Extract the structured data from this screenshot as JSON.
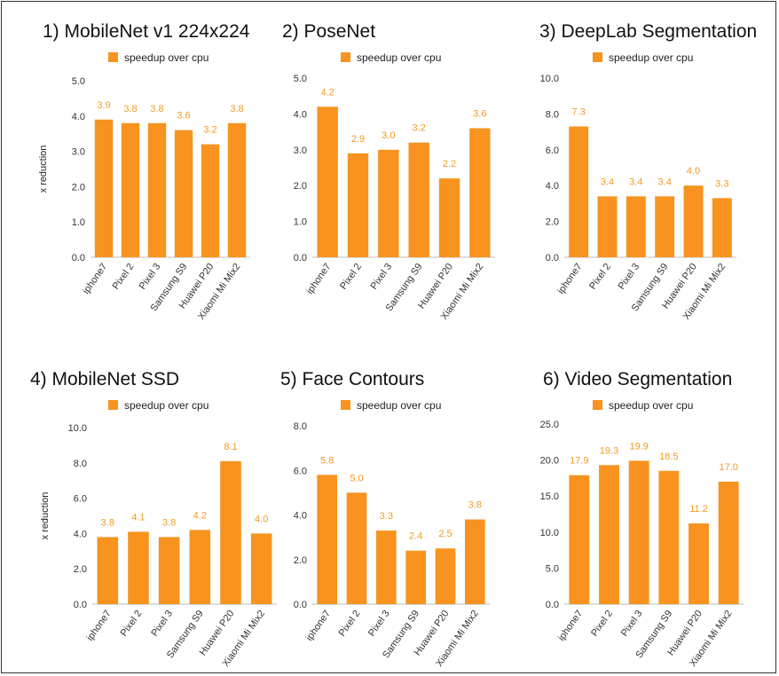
{
  "bar_color": "#f7931e",
  "chart_data": [
    {
      "type": "bar",
      "title": "1) MobileNet v1 224x224",
      "legend": "speedup over cpu",
      "ylabel": "x reduction",
      "categories": [
        "iphone7",
        "Pixel 2",
        "Pixel 3",
        "Samsung S9",
        "Huawei P20",
        "Xiaomi Mi Mix2"
      ],
      "series": [
        {
          "name": "speedup over cpu",
          "values": [
            3.9,
            3.8,
            3.8,
            3.6,
            3.2,
            3.8
          ]
        }
      ],
      "ylim": [
        0,
        5
      ],
      "yticks": [
        "0.0",
        "1.0",
        "2.0",
        "3.0",
        "4.0",
        "5.0"
      ],
      "data_labels": [
        "3.9",
        "3.8",
        "3.8",
        "3.6",
        "3.2",
        "3.8"
      ]
    },
    {
      "type": "bar",
      "title": "2) PoseNet",
      "legend": "speedup over cpu",
      "ylabel": "",
      "categories": [
        "iphone7",
        "Pixel 2",
        "Pixel 3",
        "Samsung S9",
        "Huawei P20",
        "Xiaomi Mi Mix2"
      ],
      "series": [
        {
          "name": "speedup over cpu",
          "values": [
            4.2,
            2.9,
            3.0,
            3.2,
            2.2,
            3.6
          ]
        }
      ],
      "ylim": [
        0,
        5
      ],
      "yticks": [
        "0.0",
        "1.0",
        "2.0",
        "3.0",
        "4.0",
        "5.0"
      ],
      "data_labels": [
        "4.2",
        "2.9",
        "3.0",
        "3.2",
        "2.2",
        "3.6"
      ]
    },
    {
      "type": "bar",
      "title": "3) DeepLab Segmentation",
      "legend": "speedup over cpu",
      "ylabel": "",
      "categories": [
        "iphone7",
        "Pixel 2",
        "Pixel 3",
        "Samsung S9",
        "Huawei P20",
        "Xiaomi Mi Mix2"
      ],
      "series": [
        {
          "name": "speedup over cpu",
          "values": [
            7.3,
            3.4,
            3.4,
            3.4,
            4.0,
            3.3
          ]
        }
      ],
      "ylim": [
        0,
        10
      ],
      "yticks": [
        "0.0",
        "2.0",
        "4.0",
        "6.0",
        "8.0",
        "10.0"
      ],
      "data_labels": [
        "7.3",
        "3.4",
        "3.4",
        "3.4",
        "4.0",
        "3.3"
      ]
    },
    {
      "type": "bar",
      "title": "4) MobileNet SSD",
      "legend": "speedup over cpu",
      "ylabel": "x reduction",
      "categories": [
        "iphone7",
        "Pixel 2",
        "Pixel 3",
        "Samsung S9",
        "Huawei P20",
        "Xiaomi Mi Mix2"
      ],
      "series": [
        {
          "name": "speedup over cpu",
          "values": [
            3.8,
            4.1,
            3.8,
            4.2,
            8.1,
            4.0
          ]
        }
      ],
      "ylim": [
        0,
        10
      ],
      "yticks": [
        "0.0",
        "2.0",
        "4.0",
        "6.0",
        "8.0",
        "10.0"
      ],
      "data_labels": [
        "3.8",
        "4.1",
        "3.8",
        "4.2",
        "8.1",
        "4.0"
      ]
    },
    {
      "type": "bar",
      "title": "5) Face Contours",
      "legend": "speedup over cpu",
      "ylabel": "",
      "categories": [
        "iphone7",
        "Pixel 2",
        "Pixel 3",
        "Samsung S9",
        "Huawei P20",
        "Xiaomi Mi Mix2"
      ],
      "series": [
        {
          "name": "speedup over cpu",
          "values": [
            5.8,
            5.0,
            3.3,
            2.4,
            2.5,
            3.8
          ]
        }
      ],
      "ylim": [
        0,
        8
      ],
      "yticks": [
        "0.0",
        "2.0",
        "4.0",
        "6.0",
        "8.0"
      ],
      "data_labels": [
        "5.8",
        "5.0",
        "3.3",
        "2.4",
        "2.5",
        "3.8"
      ]
    },
    {
      "type": "bar",
      "title": "6) Video Segmentation",
      "legend": "speedup over cpu",
      "ylabel": "",
      "categories": [
        "iphone7",
        "Pixel 2",
        "Pixel 3",
        "Samsung S9",
        "Huawei P20",
        "Xiaomi Mi Mix2"
      ],
      "series": [
        {
          "name": "speedup over cpu",
          "values": [
            17.9,
            19.3,
            19.9,
            18.5,
            11.2,
            17.0
          ]
        }
      ],
      "ylim": [
        0,
        25
      ],
      "yticks": [
        "0.0",
        "5.0",
        "10.0",
        "15.0",
        "20.0",
        "25.0"
      ],
      "data_labels": [
        "17.9",
        "19.3",
        "19.9",
        "18.5",
        "11.2",
        "17.0"
      ]
    }
  ]
}
